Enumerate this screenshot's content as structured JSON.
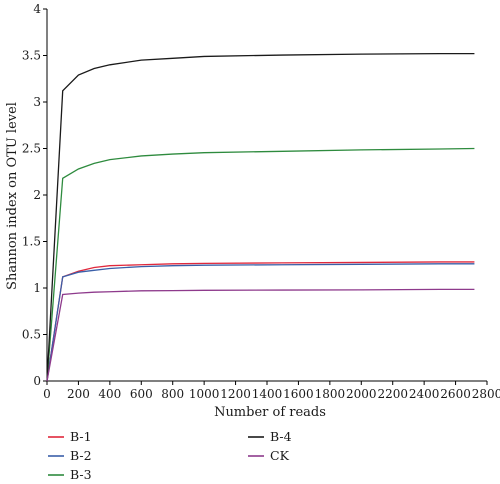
{
  "chart_data": {
    "type": "line",
    "xlabel": "Number of reads",
    "ylabel": "Shannon index on OTU level",
    "xlim": [
      0,
      2800
    ],
    "ylim": [
      0,
      4
    ],
    "x_ticks": [
      "0",
      "200",
      "400",
      "600",
      "800",
      "1000",
      "1200",
      "1400",
      "1600",
      "1800",
      "2000",
      "2200",
      "2400",
      "2600",
      "2800"
    ],
    "y_ticks": [
      "0",
      "0.5",
      "1",
      "1.5",
      "2",
      "2.5",
      "3",
      "3.5",
      "4"
    ],
    "grid": false,
    "legend_position": "bottom",
    "series": [
      {
        "name": "B-1",
        "color": "#e0283c",
        "x": [
          0,
          100,
          200,
          300,
          400,
          600,
          800,
          1000,
          1500,
          2000,
          2500,
          2720
        ],
        "y": [
          0,
          1.12,
          1.18,
          1.22,
          1.24,
          1.25,
          1.26,
          1.265,
          1.27,
          1.275,
          1.28,
          1.28
        ]
      },
      {
        "name": "B-2",
        "color": "#3a5fa8",
        "x": [
          0,
          100,
          200,
          300,
          400,
          600,
          800,
          1000,
          1500,
          2000,
          2500,
          2720
        ],
        "y": [
          0,
          1.12,
          1.17,
          1.19,
          1.21,
          1.23,
          1.24,
          1.245,
          1.25,
          1.255,
          1.26,
          1.26
        ]
      },
      {
        "name": "B-3",
        "color": "#2e8b3e",
        "x": [
          0,
          100,
          200,
          300,
          400,
          600,
          800,
          1000,
          1500,
          2000,
          2500,
          2720
        ],
        "y": [
          0,
          2.18,
          2.28,
          2.34,
          2.38,
          2.42,
          2.44,
          2.455,
          2.47,
          2.485,
          2.495,
          2.5
        ]
      },
      {
        "name": "B-4",
        "color": "#1a1a1a",
        "x": [
          0,
          100,
          200,
          300,
          400,
          600,
          800,
          1000,
          1500,
          2000,
          2500,
          2720
        ],
        "y": [
          0,
          3.12,
          3.29,
          3.36,
          3.4,
          3.45,
          3.47,
          3.49,
          3.505,
          3.515,
          3.52,
          3.52
        ]
      },
      {
        "name": "CK",
        "color": "#8e3a8c",
        "x": [
          0,
          100,
          200,
          300,
          400,
          600,
          800,
          1000,
          1500,
          2000,
          2500,
          2720
        ],
        "y": [
          0,
          0.93,
          0.945,
          0.955,
          0.96,
          0.97,
          0.972,
          0.975,
          0.978,
          0.98,
          0.985,
          0.985
        ]
      }
    ]
  }
}
